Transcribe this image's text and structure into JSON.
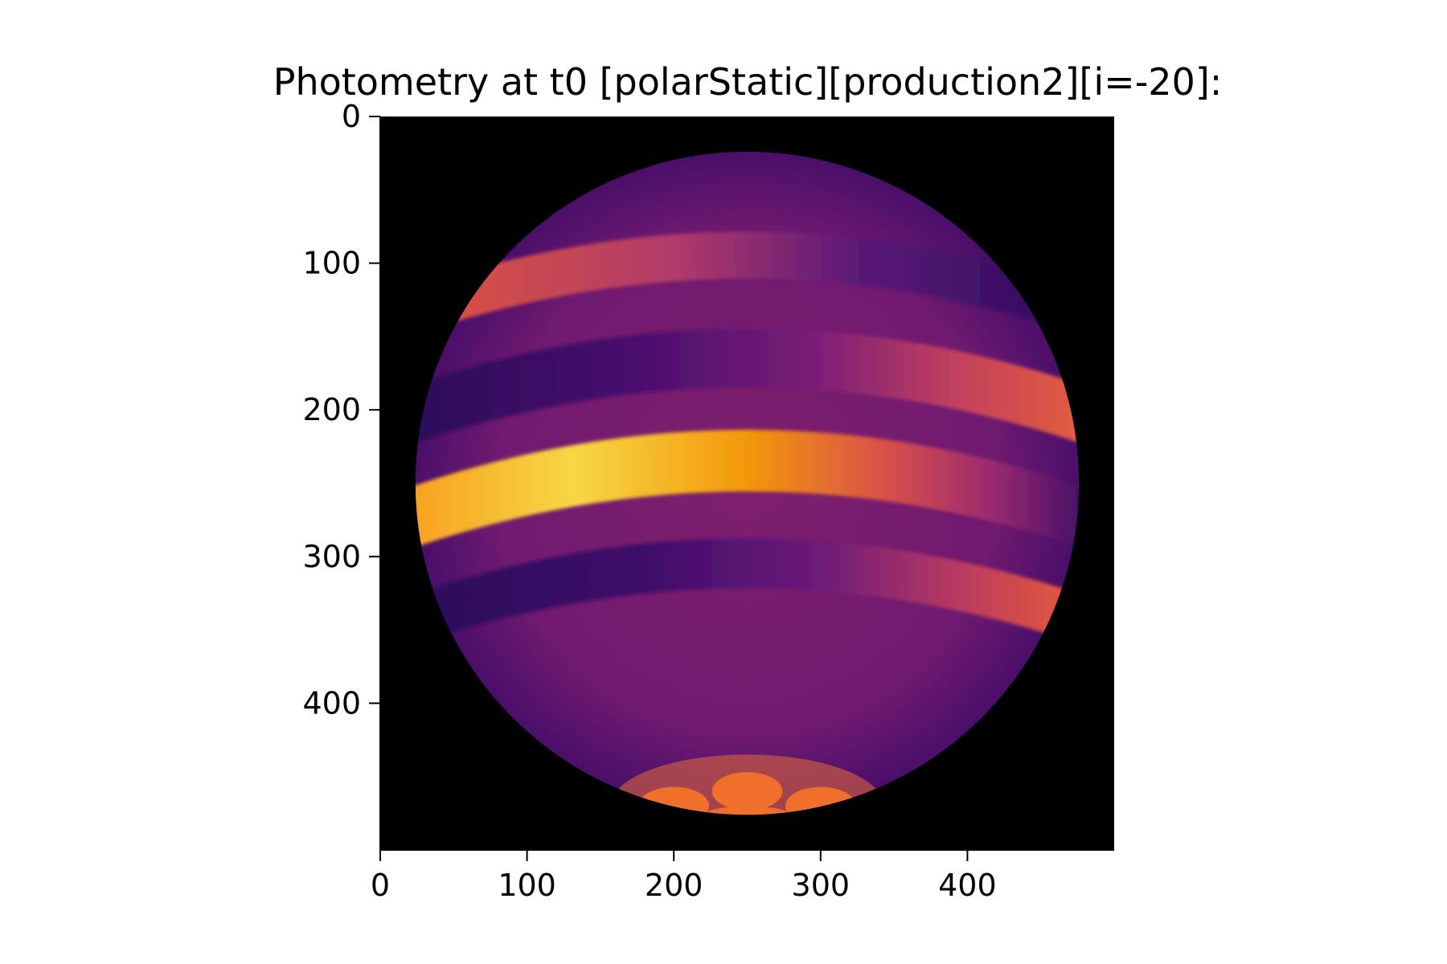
{
  "chart_data": {
    "type": "heatmap",
    "title": "Photometry at t0 [polarStatic][production2][i=-20]:",
    "xlabel": "",
    "ylabel": "",
    "xlim": [
      0,
      500
    ],
    "ylim": [
      500,
      0
    ],
    "grid": false,
    "legend": "none",
    "colormap": "inferno",
    "x_ticks": [
      0,
      100,
      200,
      300,
      400
    ],
    "y_ticks": [
      0,
      100,
      200,
      300,
      400
    ],
    "background_color": "#000000",
    "disk": {
      "center": [
        250,
        250
      ],
      "radius": 226
    },
    "bands": [
      {
        "center_y": 100,
        "half_width": 16,
        "stops": [
          [
            0,
            "#e0563a"
          ],
          [
            0.4,
            "#b03a6a"
          ],
          [
            0.65,
            "#5c1a78"
          ],
          [
            1,
            "#2a0a5a"
          ]
        ]
      },
      {
        "center_y": 170,
        "half_width": 20,
        "stops": [
          [
            0,
            "#2a0a5a"
          ],
          [
            0.35,
            "#4a0e6e"
          ],
          [
            0.6,
            "#7c1e78"
          ],
          [
            0.8,
            "#c2405e"
          ],
          [
            1,
            "#e8603a"
          ]
        ]
      },
      {
        "center_y": 240,
        "half_width": 21,
        "stops": [
          [
            0,
            "#f99d1c"
          ],
          [
            0.25,
            "#f6d746"
          ],
          [
            0.5,
            "#f4970a"
          ],
          [
            0.7,
            "#d8504a"
          ],
          [
            0.85,
            "#9b2a70"
          ],
          [
            1,
            "#3a0c64"
          ]
        ]
      },
      {
        "center_y": 310,
        "half_width": 17,
        "stops": [
          [
            0,
            "#2a0a5a"
          ],
          [
            0.35,
            "#3e0c6a"
          ],
          [
            0.6,
            "#6c1a78"
          ],
          [
            0.8,
            "#b83a62"
          ],
          [
            1,
            "#ec5e34"
          ]
        ]
      }
    ],
    "polar_cap": {
      "center": [
        250,
        470
      ],
      "radii": [
        93,
        35
      ],
      "color": "#e36d37",
      "spots_color": "#f06f2a"
    }
  }
}
